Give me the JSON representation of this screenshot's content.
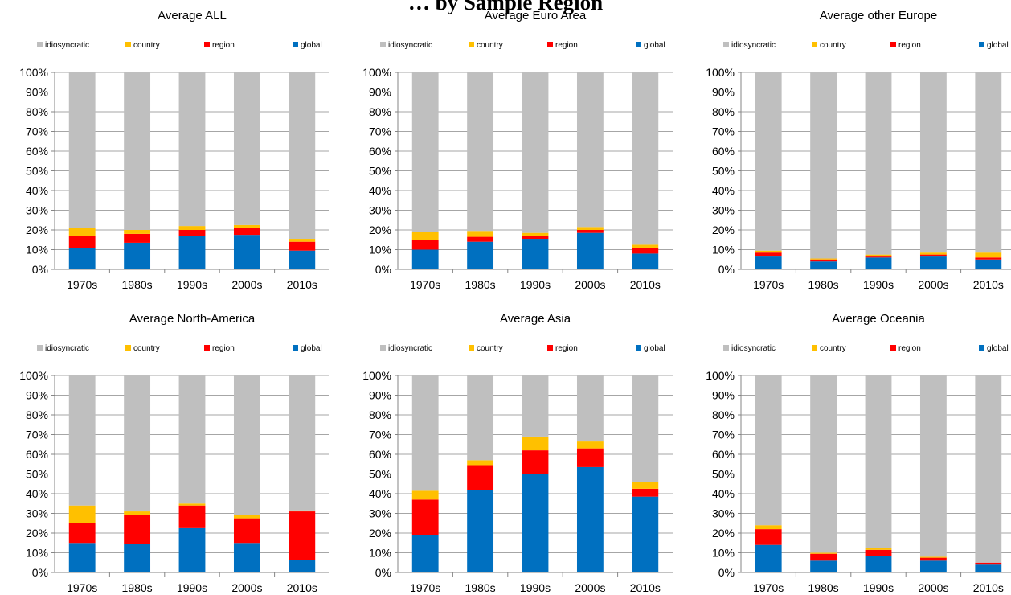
{
  "figure": {
    "title": "… by Sample Region"
  },
  "colors": {
    "global": "#0070C0",
    "region": "#FF0000",
    "country": "#FFC000",
    "idiosyncratic": "#BFBFBF",
    "gridline": "#A6A6A6",
    "axis": "#868686"
  },
  "chart_data": [
    {
      "type": "bar",
      "stacked": true,
      "title": "Average ALL",
      "categories": [
        "1970s",
        "1980s",
        "1990s",
        "2000s",
        "2010s"
      ],
      "ylim": [
        0,
        100
      ],
      "ytick_labels": [
        "0%",
        "10%",
        "20%",
        "30%",
        "40%",
        "50%",
        "60%",
        "70%",
        "80%",
        "90%",
        "100%"
      ],
      "legend": [
        "idiosyncratic",
        "country",
        "region",
        "global"
      ],
      "legend_position": "top",
      "grid": true,
      "series": [
        {
          "name": "global",
          "color": "#0070C0",
          "values": [
            11,
            13.5,
            17,
            17.5,
            9.5
          ]
        },
        {
          "name": "region",
          "color": "#FF0000",
          "values": [
            6,
            4.5,
            3,
            3.5,
            4.5
          ]
        },
        {
          "name": "country",
          "color": "#FFC000",
          "values": [
            4,
            2,
            2,
            1.5,
            1.5
          ]
        },
        {
          "name": "idiosyncratic",
          "color": "#BFBFBF",
          "values": [
            79,
            80,
            78,
            77.5,
            84.5
          ]
        }
      ]
    },
    {
      "type": "bar",
      "stacked": true,
      "title": "Average Euro Area",
      "categories": [
        "1970s",
        "1980s",
        "1990s",
        "2000s",
        "2010s"
      ],
      "ylim": [
        0,
        100
      ],
      "ytick_labels": [
        "0%",
        "10%",
        "20%",
        "30%",
        "40%",
        "50%",
        "60%",
        "70%",
        "80%",
        "90%",
        "100%"
      ],
      "legend": [
        "idiosyncratic",
        "country",
        "region",
        "global"
      ],
      "legend_position": "top",
      "grid": true,
      "series": [
        {
          "name": "global",
          "color": "#0070C0",
          "values": [
            10,
            14,
            15.5,
            18.5,
            8
          ]
        },
        {
          "name": "region",
          "color": "#FF0000",
          "values": [
            5,
            2.5,
            1.5,
            1.5,
            3
          ]
        },
        {
          "name": "country",
          "color": "#FFC000",
          "values": [
            4,
            3,
            1.5,
            1.5,
            1.5
          ]
        },
        {
          "name": "idiosyncratic",
          "color": "#BFBFBF",
          "values": [
            81,
            80.5,
            81.5,
            78.5,
            87.5
          ]
        }
      ]
    },
    {
      "type": "bar",
      "stacked": true,
      "title": "Average other Europe",
      "categories": [
        "1970s",
        "1980s",
        "1990s",
        "2000s",
        "2010s"
      ],
      "ylim": [
        0,
        100
      ],
      "ytick_labels": [
        "0%",
        "10%",
        "20%",
        "30%",
        "40%",
        "50%",
        "60%",
        "70%",
        "80%",
        "90%",
        "100%"
      ],
      "legend": [
        "idiosyncratic",
        "country",
        "region",
        "global"
      ],
      "legend_position": "top",
      "grid": true,
      "series": [
        {
          "name": "global",
          "color": "#0070C0",
          "values": [
            6.5,
            4,
            6,
            6.5,
            5
          ]
        },
        {
          "name": "region",
          "color": "#FF0000",
          "values": [
            2,
            1,
            0.5,
            1,
            1
          ]
        },
        {
          "name": "country",
          "color": "#FFC000",
          "values": [
            1,
            0.5,
            1,
            1,
            2.5
          ]
        },
        {
          "name": "idiosyncratic",
          "color": "#BFBFBF",
          "values": [
            90.5,
            94.5,
            92.5,
            91.5,
            91.5
          ]
        }
      ]
    },
    {
      "type": "bar",
      "stacked": true,
      "title": "Average North-America",
      "categories": [
        "1970s",
        "1980s",
        "1990s",
        "2000s",
        "2010s"
      ],
      "ylim": [
        0,
        100
      ],
      "ytick_labels": [
        "0%",
        "10%",
        "20%",
        "30%",
        "40%",
        "50%",
        "60%",
        "70%",
        "80%",
        "90%",
        "100%"
      ],
      "legend": [
        "idiosyncratic",
        "country",
        "region",
        "global"
      ],
      "legend_position": "top",
      "grid": true,
      "series": [
        {
          "name": "global",
          "color": "#0070C0",
          "values": [
            15,
            14.5,
            22.5,
            15,
            6.5
          ]
        },
        {
          "name": "region",
          "color": "#FF0000",
          "values": [
            10,
            14.5,
            11.5,
            12.5,
            24.5
          ]
        },
        {
          "name": "country",
          "color": "#FFC000",
          "values": [
            9,
            2,
            1,
            1.5,
            0.5
          ]
        },
        {
          "name": "idiosyncratic",
          "color": "#BFBFBF",
          "values": [
            66,
            69,
            65,
            71,
            68.5
          ]
        }
      ]
    },
    {
      "type": "bar",
      "stacked": true,
      "title": "Average Asia",
      "categories": [
        "1970s",
        "1980s",
        "1990s",
        "2000s",
        "2010s"
      ],
      "ylim": [
        0,
        100
      ],
      "ytick_labels": [
        "0%",
        "10%",
        "20%",
        "30%",
        "40%",
        "50%",
        "60%",
        "70%",
        "80%",
        "90%",
        "100%"
      ],
      "legend": [
        "idiosyncratic",
        "country",
        "region",
        "global"
      ],
      "legend_position": "top",
      "grid": true,
      "series": [
        {
          "name": "global",
          "color": "#0070C0",
          "values": [
            19,
            42,
            50,
            53.5,
            38.5
          ]
        },
        {
          "name": "region",
          "color": "#FF0000",
          "values": [
            18,
            12.5,
            12,
            9.5,
            4
          ]
        },
        {
          "name": "country",
          "color": "#FFC000",
          "values": [
            4.5,
            2.5,
            7,
            3.5,
            3.5
          ]
        },
        {
          "name": "idiosyncratic",
          "color": "#BFBFBF",
          "values": [
            58.5,
            43,
            31,
            33.5,
            54
          ]
        }
      ]
    },
    {
      "type": "bar",
      "stacked": true,
      "title": "Average Oceania",
      "categories": [
        "1970s",
        "1980s",
        "1990s",
        "2000s",
        "2010s"
      ],
      "ylim": [
        0,
        100
      ],
      "ytick_labels": [
        "0%",
        "10%",
        "20%",
        "30%",
        "40%",
        "50%",
        "60%",
        "70%",
        "80%",
        "90%",
        "100%"
      ],
      "legend": [
        "idiosyncratic",
        "country",
        "region",
        "global"
      ],
      "legend_position": "top",
      "grid": true,
      "series": [
        {
          "name": "global",
          "color": "#0070C0",
          "values": [
            14,
            6,
            8.5,
            6,
            4
          ]
        },
        {
          "name": "region",
          "color": "#FF0000",
          "values": [
            8,
            3.5,
            3,
            1.5,
            1
          ]
        },
        {
          "name": "country",
          "color": "#FFC000",
          "values": [
            2,
            0.5,
            1,
            0.5,
            0
          ]
        },
        {
          "name": "idiosyncratic",
          "color": "#BFBFBF",
          "values": [
            76,
            90,
            87.5,
            92,
            95
          ]
        }
      ]
    }
  ]
}
